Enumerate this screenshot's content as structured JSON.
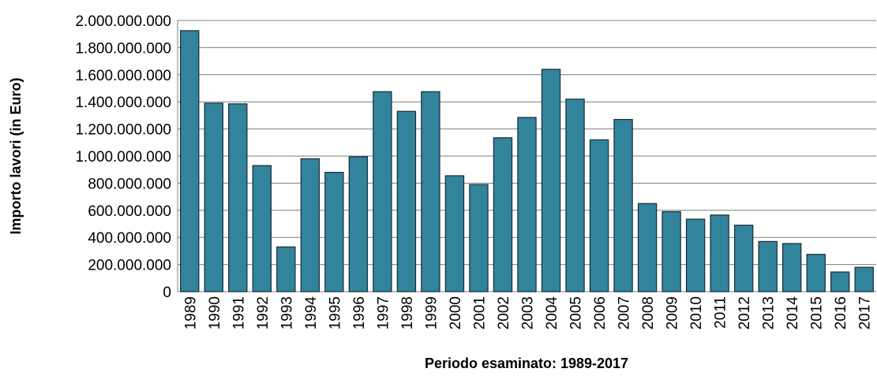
{
  "chart_data": {
    "type": "bar",
    "x_label": "Periodo esaminato: 1989-2017",
    "y_label": "Importo lavori (in Euro)",
    "categories": [
      "1989",
      "1990",
      "1991",
      "1992",
      "1993",
      "1994",
      "1995",
      "1996",
      "1997",
      "1998",
      "1999",
      "2000",
      "2001",
      "2002",
      "2003",
      "2004",
      "2005",
      "2006",
      "2007",
      "2008",
      "2009",
      "2010",
      "2011",
      "2012",
      "2013",
      "2014",
      "2015",
      "2016",
      "2017"
    ],
    "values": [
      1925000000,
      1390000000,
      1385000000,
      930000000,
      330000000,
      980000000,
      880000000,
      995000000,
      1475000000,
      1330000000,
      1475000000,
      855000000,
      790000000,
      1135000000,
      1285000000,
      1640000000,
      1420000000,
      1120000000,
      1270000000,
      650000000,
      590000000,
      535000000,
      565000000,
      490000000,
      370000000,
      355000000,
      275000000,
      145000000,
      180000000
    ],
    "color": "#31849b",
    "ylim": [
      0,
      2000000000
    ],
    "yticks": [
      0,
      {
        "value": 200000000,
        "label": "200.000.000"
      },
      {
        "value": 400000000,
        "label": "400.000.000"
      },
      {
        "value": 600000000,
        "label": "600.000.000"
      },
      {
        "value": 800000000,
        "label": "800.000.000"
      },
      {
        "value": 1000000000,
        "label": "1.000.000.000"
      },
      {
        "value": 1200000000,
        "label": "1.200.000.000"
      },
      {
        "value": 1400000000,
        "label": "1.400.000.000"
      },
      {
        "value": 1600000000,
        "label": "1.600.000.000"
      },
      {
        "value": 1800000000,
        "label": "1.800.000.000"
      },
      {
        "value": 2000000000,
        "label": "2.000.000.000"
      }
    ],
    "grid": true
  }
}
